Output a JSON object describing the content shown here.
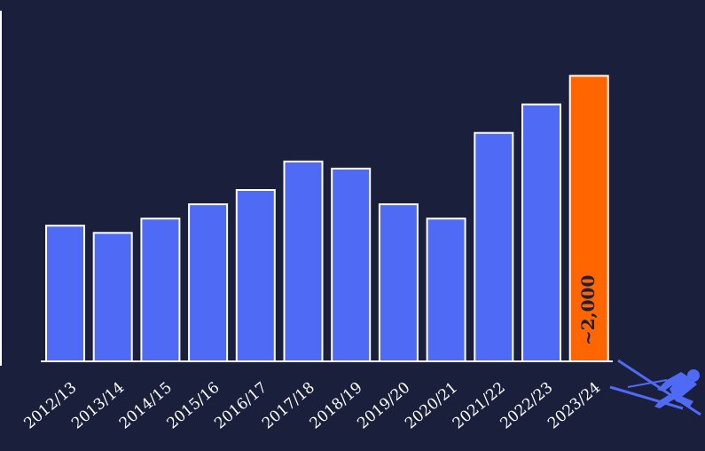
{
  "chart_data": {
    "type": "bar",
    "categories": [
      "2012/13",
      "2013/14",
      "2014/15",
      "2015/16",
      "2016/17",
      "2017/18",
      "2018/19",
      "2019/20",
      "2020/21",
      "2021/22",
      "2022/23",
      "2023/24"
    ],
    "values": [
      950,
      900,
      1000,
      1100,
      1200,
      1400,
      1350,
      1100,
      1000,
      1600,
      1800,
      2000
    ],
    "highlight_label": "~2,000",
    "highlight_index": 11,
    "ylim": [
      0,
      2500
    ],
    "title": "",
    "xlabel": "",
    "ylabel": "",
    "grid": false,
    "colors": {
      "background": "#1a1f3c",
      "bar": "#4f6bf5",
      "highlight": "#ff6600",
      "bar_stroke": "#ffffff",
      "text": "#ffffff",
      "highlight_text": "#1a1f3c",
      "skier": "#4f6bf5"
    },
    "decoration_icon": "skier-icon"
  }
}
